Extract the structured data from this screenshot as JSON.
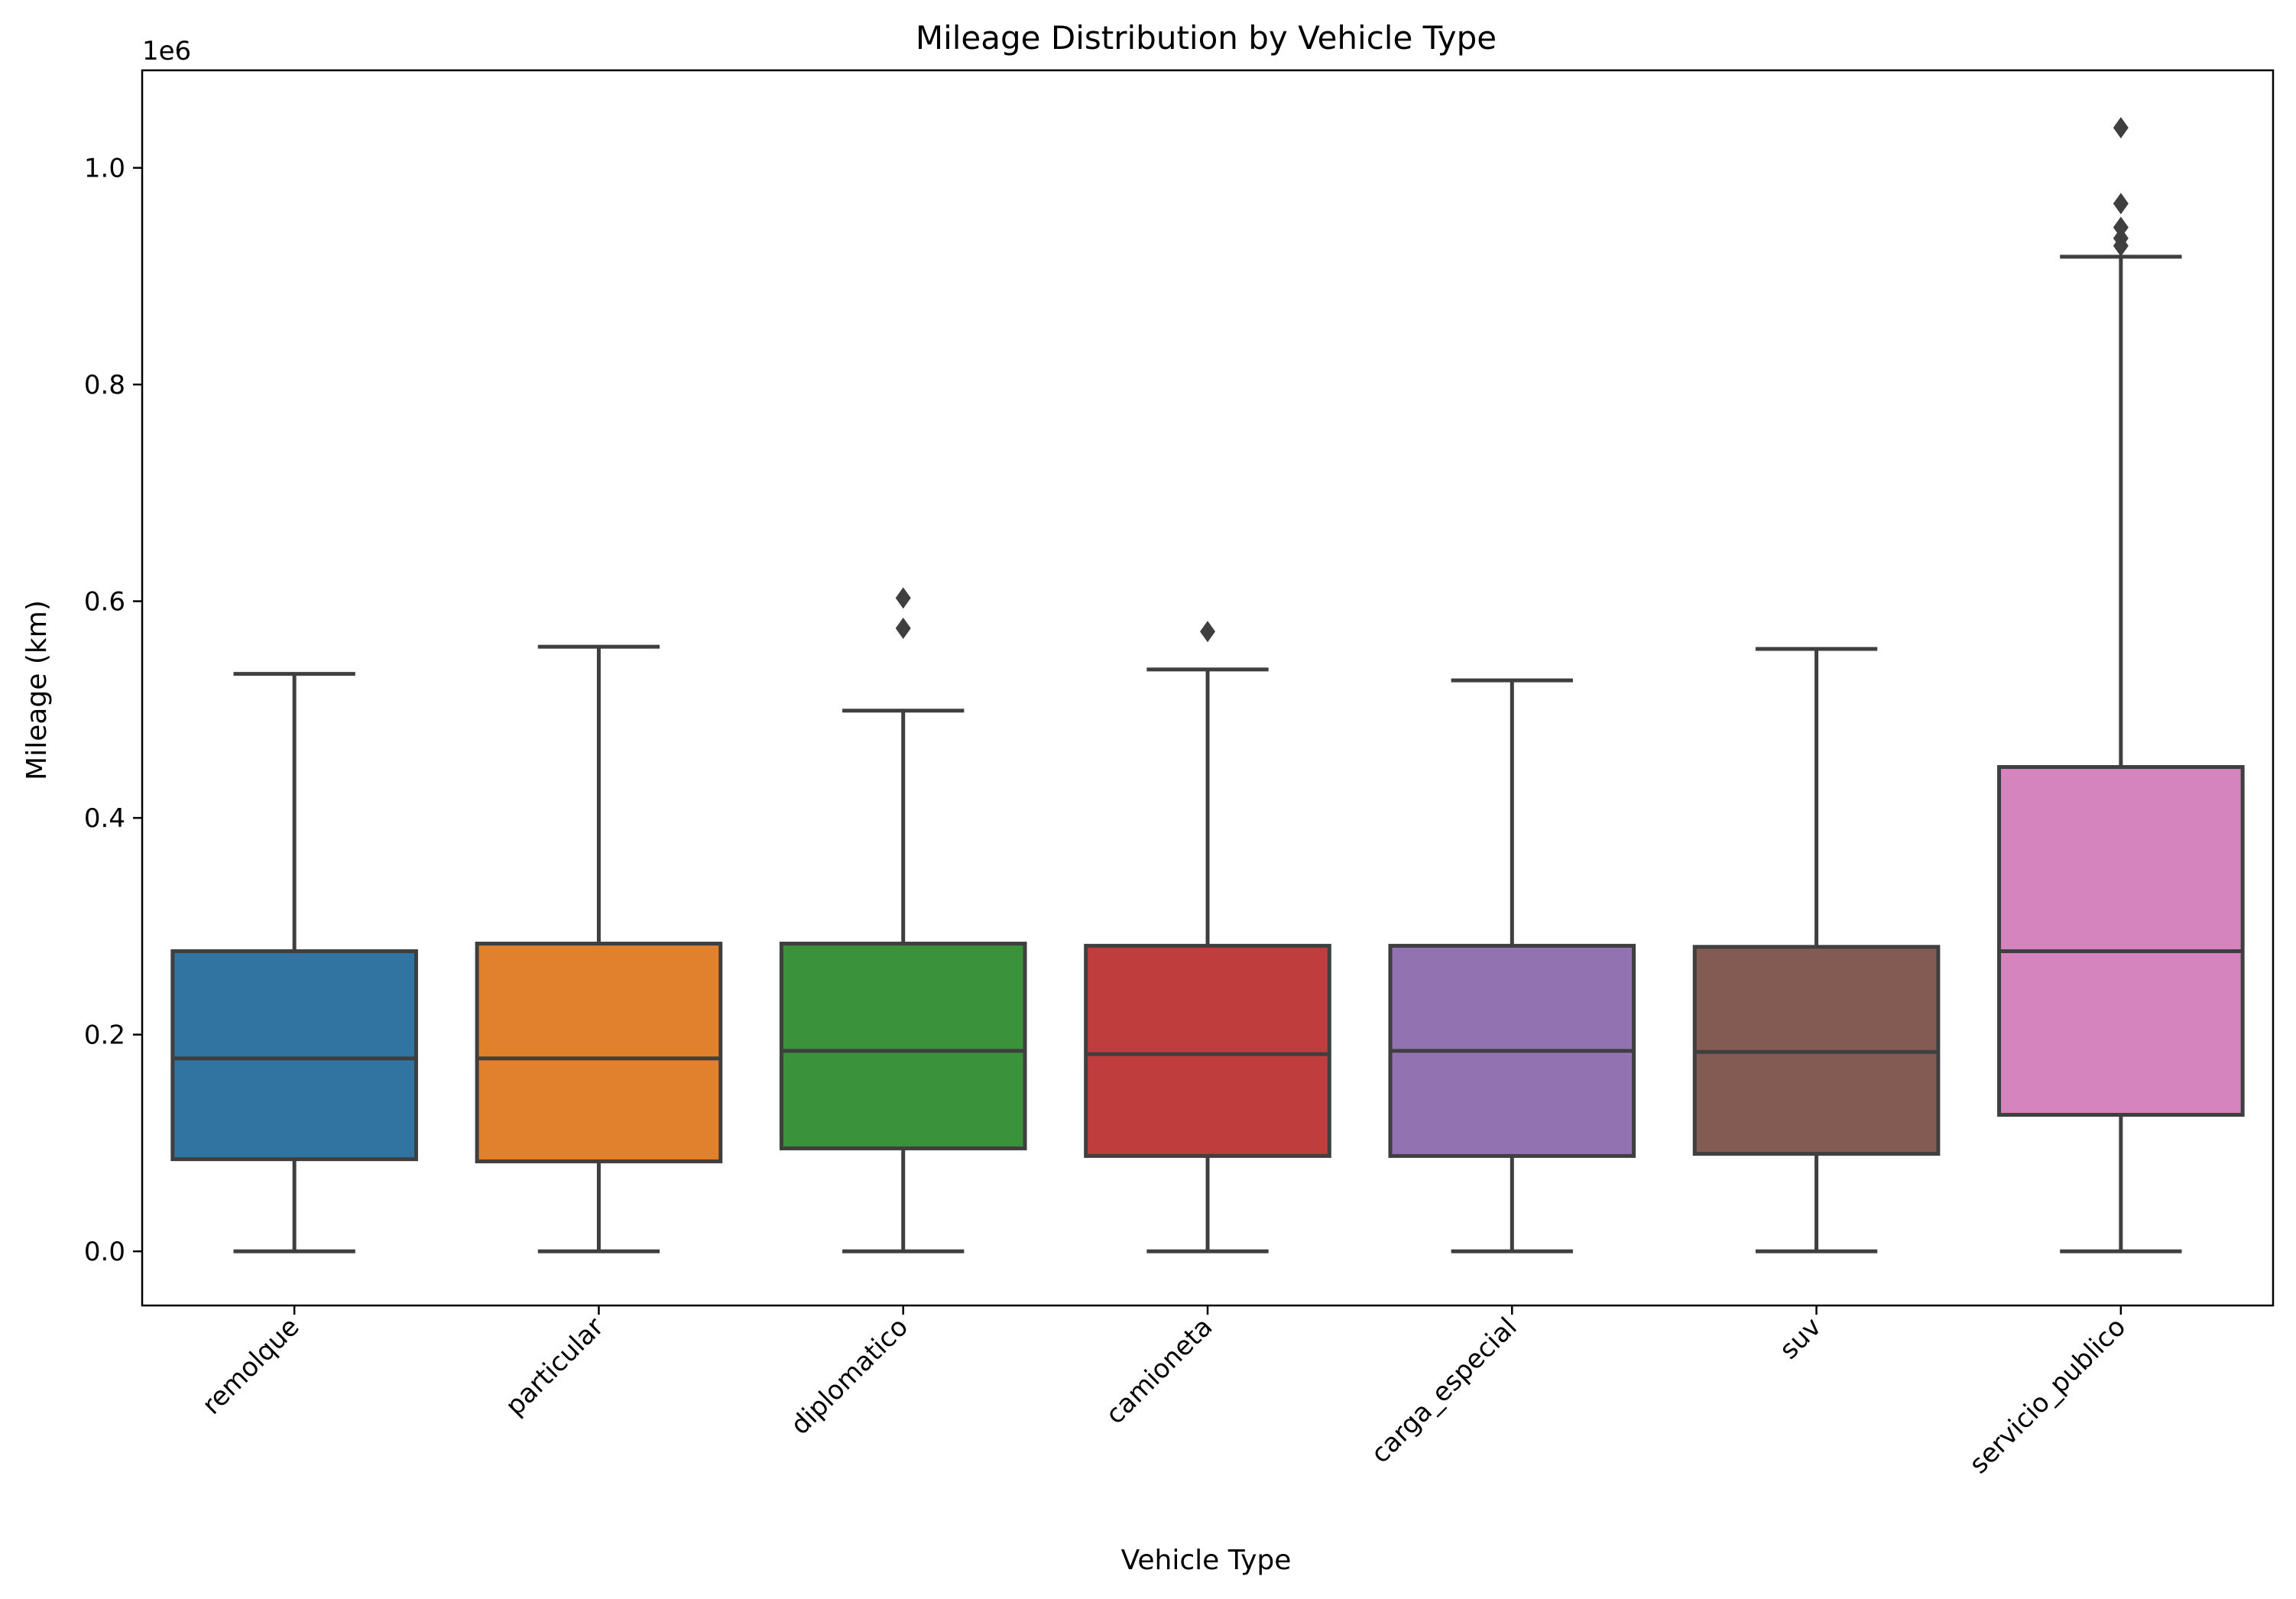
{
  "chart_data": {
    "type": "box",
    "title": "Mileage Distribution by Vehicle Type",
    "xlabel": "Vehicle Type",
    "ylabel": "Mileage (km)",
    "y_multiplier_label": "1e6",
    "ylim": [
      -50000,
      1090000
    ],
    "yticks": [
      0.0,
      0.2,
      0.4,
      0.6,
      0.8,
      1.0
    ],
    "ytick_labels": [
      "0.0",
      "0.2",
      "0.4",
      "0.6",
      "0.8",
      "1.0"
    ],
    "grid": false,
    "legend": "none",
    "categories": [
      "remolque",
      "particular",
      "diplomatico",
      "camioneta",
      "carga_especial",
      "suv",
      "servicio_publico"
    ],
    "boxes": [
      {
        "category": "remolque",
        "color": "#3274a1",
        "whisker_low": 0,
        "q1": 85000,
        "median": 178000,
        "q3": 277000,
        "whisker_high": 533000,
        "outliers": []
      },
      {
        "category": "particular",
        "color": "#e1812c",
        "whisker_low": 0,
        "q1": 83000,
        "median": 178000,
        "q3": 284000,
        "whisker_high": 558000,
        "outliers": []
      },
      {
        "category": "diplomatico",
        "color": "#3a923a",
        "whisker_low": 0,
        "q1": 95000,
        "median": 185000,
        "q3": 284000,
        "whisker_high": 499000,
        "outliers": [
          575000,
          603000
        ]
      },
      {
        "category": "camioneta",
        "color": "#c03d3e",
        "whisker_low": 0,
        "q1": 88000,
        "median": 182000,
        "q3": 282000,
        "whisker_high": 537000,
        "outliers": [
          572000
        ]
      },
      {
        "category": "carga_especial",
        "color": "#9372b2",
        "whisker_low": 0,
        "q1": 88000,
        "median": 185000,
        "q3": 282000,
        "whisker_high": 527000,
        "outliers": []
      },
      {
        "category": "suv",
        "color": "#845b53",
        "whisker_low": 0,
        "q1": 90000,
        "median": 184000,
        "q3": 281000,
        "whisker_high": 556000,
        "outliers": []
      },
      {
        "category": "servicio_publico",
        "color": "#d684bd",
        "whisker_low": 0,
        "q1": 126000,
        "median": 277000,
        "q3": 447000,
        "whisker_high": 918000,
        "outliers": [
          928000,
          935000,
          945000,
          967000,
          1037000
        ]
      }
    ]
  }
}
